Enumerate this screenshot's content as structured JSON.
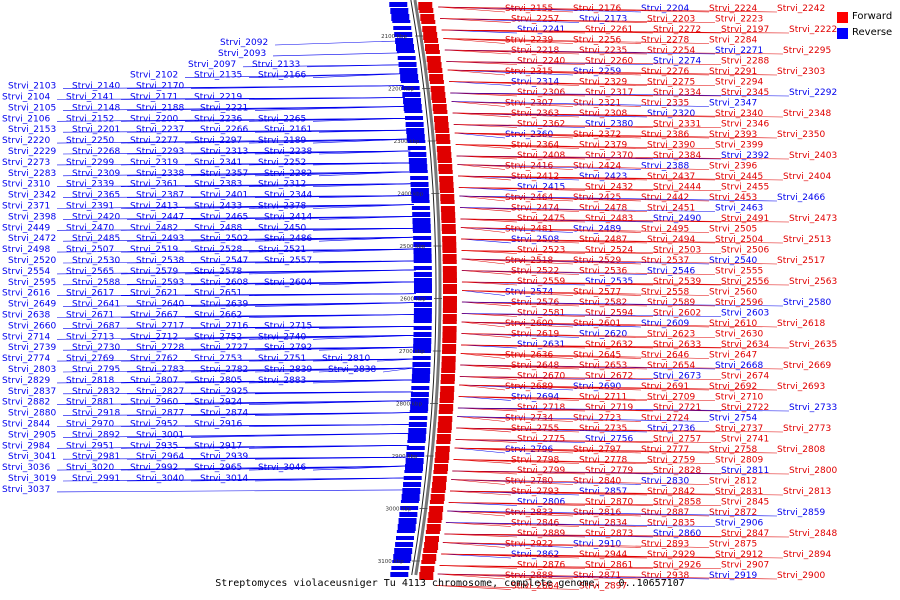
{
  "caption": "Streptomyces violaceusniger Tu 4113 chromosome, complete genome. - 0..10657107",
  "legend": [
    {
      "label": "Forward",
      "color": "#ff0000"
    },
    {
      "label": "Reverse",
      "color": "#0000ff"
    }
  ],
  "strands": {
    "forward_color": "#e00000",
    "reverse_color": "#0000ee",
    "backbone_color": "#777777"
  },
  "scale_ticks": [
    "2100 kbp",
    "2200 kbp",
    "2300 kbp",
    "2400 kbp",
    "2500 kbp",
    "2600 kbp",
    "2700 kbp",
    "2800 kbp",
    "2900 kbp",
    "3000 kbp",
    "3100 kbp"
  ],
  "left_labels": [
    "Strvi_2092",
    "Strvi_2093",
    "Strvi_2097",
    "Strvi_2133",
    "Strvi_2102",
    "Strvi_2135",
    "Strvi_2166",
    "Strvi_2103",
    "Strvi_2140",
    "Strvi_2170",
    "Strvi_2104",
    "Strvi_2141",
    "Strvi_2171",
    "Strvi_2219",
    "Strvi_2105",
    "Strvi_2148",
    "Strvi_2188",
    "Strvi_2221",
    "Strvi_2106",
    "Strvi_2152",
    "Strvi_2200",
    "Strvi_2236",
    "Strvi_2265",
    "Strvi_2153",
    "Strvi_2201",
    "Strvi_2237",
    "Strvi_2266",
    "Strvi_2161",
    "Strvi_2220",
    "Strvi_2250",
    "Strvi_2277",
    "Strvi_2297",
    "Strvi_2189",
    "Strvi_2229",
    "Strvi_2268",
    "Strvi_2293",
    "Strvi_2313",
    "Strvi_2238",
    "Strvi_2273",
    "Strvi_2299",
    "Strvi_2319",
    "Strvi_2341",
    "Strvi_2252",
    "Strvi_2283",
    "Strvi_2309",
    "Strvi_2338",
    "Strvi_2357",
    "Strvi_2282",
    "Strvi_2310",
    "Strvi_2339",
    "Strvi_2361",
    "Strvi_2383",
    "Strvi_2312",
    "Strvi_2342",
    "Strvi_2365",
    "Strvi_2387",
    "Strvi_2401",
    "Strvi_2344",
    "Strvi_2371",
    "Strvi_2391",
    "Strvi_2413",
    "Strvi_2433",
    "Strvi_2378",
    "Strvi_2398",
    "Strvi_2420",
    "Strvi_2447",
    "Strvi_2465",
    "Strvi_2414",
    "Strvi_2449",
    "Strvi_2470",
    "Strvi_2482",
    "Strvi_2488",
    "Strvi_2450",
    "Strvi_2472",
    "Strvi_2485",
    "Strvi_2493",
    "Strvi_2502",
    "Strvi_2486",
    "Strvi_2498",
    "Strvi_2507",
    "Strvi_2519",
    "Strvi_2528",
    "Strvi_2521",
    "Strvi_2520",
    "Strvi_2530",
    "Strvi_2538",
    "Strvi_2547",
    "Strvi_2557",
    "Strvi_2554",
    "Strvi_2565",
    "Strvi_2579",
    "Strvi_2578",
    "Strvi_2595",
    "Strvi_2588",
    "Strvi_2593",
    "Strvi_2608",
    "Strvi_2604",
    "Strvi_2616",
    "Strvi_2617",
    "Strvi_2621",
    "Strvi_2651",
    "Strvi_2649",
    "Strvi_2641",
    "Strvi_2640",
    "Strvi_2639",
    "Strvi_2638",
    "Strvi_2671",
    "Strvi_2667",
    "Strvi_2662",
    "Strvi_2660",
    "Strvi_2687",
    "Strvi_2717",
    "Strvi_2716",
    "Strvi_2715",
    "Strvi_2714",
    "Strvi_2713",
    "Strvi_2712",
    "Strvi_2752",
    "Strvi_2740",
    "Strvi_2739",
    "Strvi_2730",
    "Strvi_2728",
    "Strvi_2727",
    "Strvi_2792",
    "Strvi_2774",
    "Strvi_2769",
    "Strvi_2762",
    "Strvi_2753",
    "Strvi_2751",
    "Strvi_2810",
    "Strvi_2803",
    "Strvi_2795",
    "Strvi_2783",
    "Strvi_2782",
    "Strvi_2839",
    "Strvi_2838",
    "Strvi_2829",
    "Strvi_2818",
    "Strvi_2807",
    "Strvi_2805",
    "Strvi_2883",
    "Strvi_2837",
    "Strvi_2832",
    "Strvi_2827",
    "Strvi_2925",
    "Strvi_2882",
    "Strvi_2881",
    "Strvi_2960",
    "Strvi_2924",
    "Strvi_2880",
    "Strvi_2918",
    "Strvi_2877",
    "Strvi_2874",
    "Strvi_2844",
    "Strvi_2970",
    "Strvi_2952",
    "Strvi_2916",
    "Strvi_2905",
    "Strvi_2892",
    "Strvi_3001",
    "Strvi_2984",
    "Strvi_2951",
    "Strvi_2935",
    "Strvi_2917",
    "Strvi_3041",
    "Strvi_2981",
    "Strvi_2964",
    "Strvi_2939",
    "Strvi_3036",
    "Strvi_3020",
    "Strvi_2992",
    "Strvi_2965",
    "Strvi_3046",
    "Strvi_3019",
    "Strvi_2991",
    "Strvi_3040",
    "Strvi_3014",
    "Strvi_3037"
  ],
  "right_labels": [
    "Strvi_2155",
    "Strvi_2176",
    "Strvi_2204",
    "Strvi_2224",
    "Strvi_2242",
    "Strvi_2257",
    "Strvi_2173",
    "Strvi_2203",
    "Strvi_2223",
    "Strvi_2241",
    "Strvi_2261",
    "Strvi_2272",
    "Strvi_2197",
    "Strvi_2222",
    "Strvi_2239",
    "Strvi_2256",
    "Strvi_2278",
    "Strvi_2284",
    "Strvi_2218",
    "Strvi_2235",
    "Strvi_2254",
    "Strvi_2271",
    "Strvi_2295",
    "Strvi_2240",
    "Strvi_2260",
    "Strvi_2274",
    "Strvi_2288",
    "Strvi_2315",
    "Strvi_2259",
    "Strvi_2276",
    "Strvi_2291",
    "Strvi_2303",
    "Strvi_2314",
    "Strvi_2329",
    "Strvi_2275",
    "Strvi_2294",
    "Strvi_2306",
    "Strvi_2317",
    "Strvi_2334",
    "Strvi_2345",
    "Strvi_2292",
    "Strvi_2307",
    "Strvi_2321",
    "Strvi_2335",
    "Strvi_2347",
    "Strvi_2363",
    "Strvi_2308",
    "Strvi_2320",
    "Strvi_2340",
    "Strvi_2348",
    "Strvi_2362",
    "Strvi_2380",
    "Strvi_2331",
    "Strvi_2346",
    "Strvi_2360",
    "Strvi_2372",
    "Strvi_2386",
    "Strvi_2393",
    "Strvi_2350",
    "Strvi_2364",
    "Strvi_2379",
    "Strvi_2390",
    "Strvi_2399",
    "Strvi_2408",
    "Strvi_2370",
    "Strvi_2384",
    "Strvi_2392",
    "Strvi_2403",
    "Strvi_2416",
    "Strvi_2424",
    "Strvi_2388",
    "Strvi_2396",
    "Strvi_2412",
    "Strvi_2423",
    "Strvi_2437",
    "Strvi_2445",
    "Strvi_2404",
    "Strvi_2415",
    "Strvi_2432",
    "Strvi_2444",
    "Strvi_2455",
    "Strvi_2464",
    "Strvi_2425",
    "Strvi_2442",
    "Strvi_2453",
    "Strvi_2466",
    "Strvi_2474",
    "Strvi_2478",
    "Strvi_2451",
    "Strvi_2463",
    "Strvi_2475",
    "Strvi_2483",
    "Strvi_2490",
    "Strvi_2491",
    "Strvi_2473",
    "Strvi_2481",
    "Strvi_2489",
    "Strvi_2495",
    "Strvi_2505",
    "Strvi_2508",
    "Strvi_2487",
    "Strvi_2494",
    "Strvi_2504",
    "Strvi_2513",
    "Strvi_2523",
    "Strvi_2524",
    "Strvi_2503",
    "Strvi_2506",
    "Strvi_2518",
    "Strvi_2529",
    "Strvi_2537",
    "Strvi_2540",
    "Strvi_2517",
    "Strvi_2522",
    "Strvi_2536",
    "Strvi_2546",
    "Strvi_2555",
    "Strvi_2559",
    "Strvi_2535",
    "Strvi_2539",
    "Strvi_2556",
    "Strvi_2563",
    "Strvi_2574",
    "Strvi_2577",
    "Strvi_2558",
    "Strvi_2560",
    "Strvi_2576",
    "Strvi_2582",
    "Strvi_2589",
    "Strvi_2596",
    "Strvi_2580",
    "Strvi_2581",
    "Strvi_2594",
    "Strvi_2602",
    "Strvi_2603",
    "Strvi_2600",
    "Strvi_2601",
    "Strvi_2609",
    "Strvi_2610",
    "Strvi_2618",
    "Strvi_2619",
    "Strvi_2620",
    "Strvi_2623",
    "Strvi_2630",
    "Strvi_2631",
    "Strvi_2632",
    "Strvi_2633",
    "Strvi_2634",
    "Strvi_2635",
    "Strvi_2636",
    "Strvi_2645",
    "Strvi_2646",
    "Strvi_2647",
    "Strvi_2648",
    "Strvi_2653",
    "Strvi_2654",
    "Strvi_2668",
    "Strvi_2669",
    "Strvi_2670",
    "Strvi_2672",
    "Strvi_2673",
    "Strvi_2674",
    "Strvi_2689",
    "Strvi_2690",
    "Strvi_2691",
    "Strvi_2692",
    "Strvi_2693",
    "Strvi_2694",
    "Strvi_2711",
    "Strvi_2709",
    "Strvi_2710",
    "Strvi_2718",
    "Strvi_2719",
    "Strvi_2721",
    "Strvi_2722",
    "Strvi_2733",
    "Strvi_2734",
    "Strvi_2723",
    "Strvi_2724",
    "Strvi_2754",
    "Strvi_2755",
    "Strvi_2735",
    "Strvi_2736",
    "Strvi_2737",
    "Strvi_2773",
    "Strvi_2775",
    "Strvi_2756",
    "Strvi_2757",
    "Strvi_2741",
    "Strvi_2796",
    "Strvi_2797",
    "Strvi_2777",
    "Strvi_2758",
    "Strvi_2808",
    "Strvi_2798",
    "Strvi_2778",
    "Strvi_2759",
    "Strvi_2809",
    "Strvi_2799",
    "Strvi_2779",
    "Strvi_2828",
    "Strvi_2811",
    "Strvi_2800",
    "Strvi_2780",
    "Strvi_2840",
    "Strvi_2830",
    "Strvi_2812",
    "Strvi_2793",
    "Strvi_2857",
    "Strvi_2842",
    "Strvi_2831",
    "Strvi_2813",
    "Strvi_2806",
    "Strvi_2870",
    "Strvi_2858",
    "Strvi_2845",
    "Strvi_2833",
    "Strvi_2816",
    "Strvi_2887",
    "Strvi_2872",
    "Strvi_2859",
    "Strvi_2846",
    "Strvi_2834",
    "Strvi_2835",
    "Strvi_2906",
    "Strvi_2889",
    "Strvi_2873",
    "Strvi_2860",
    "Strvi_2847",
    "Strvi_2848",
    "Strvi_2922",
    "Strvi_2910",
    "Strvi_2893",
    "Strvi_2875",
    "Strvi_2862",
    "Strvi_2944",
    "Strvi_2929",
    "Strvi_2912",
    "Strvi_2894",
    "Strvi_2876",
    "Strvi_2861",
    "Strvi_2926",
    "Strvi_2907",
    "Strvi_2888",
    "Strvi_2871",
    "Strvi_2938",
    "Strvi_2919",
    "Strvi_2900",
    "Strvi_2884",
    "Strvi_2897"
  ]
}
